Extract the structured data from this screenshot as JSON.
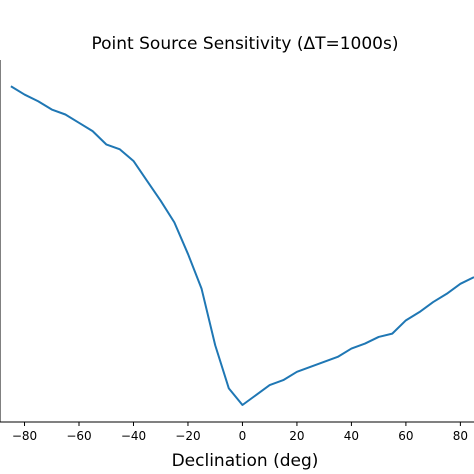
{
  "chart_data": {
    "type": "line",
    "title": "Point Source Sensitivity (ΔT=1000s)",
    "xlabel": "Declination (deg)",
    "ylabel": "",
    "xlim": [
      -89,
      85
    ],
    "ylim": [
      0,
      100
    ],
    "xticks": [
      -80,
      -60,
      -40,
      -20,
      0,
      20,
      40,
      60,
      80
    ],
    "xtick_labels": [
      "−80",
      "−60",
      "−40",
      "−20",
      "0",
      "20",
      "40",
      "60",
      "80"
    ],
    "grid": false,
    "series": [
      {
        "color": "#1f77b4",
        "x": [
          -85,
          -80,
          -75,
          -70,
          -65,
          -60,
          -55,
          -50,
          -45,
          -40,
          -35,
          -30,
          -25,
          -20,
          -15,
          -10,
          -5,
          0,
          5,
          10,
          15,
          20,
          25,
          30,
          35,
          40,
          45,
          50,
          55,
          60,
          65,
          70,
          75,
          80,
          85
        ],
        "y": [
          96,
          93.5,
          91.5,
          89,
          87.5,
          85,
          82.5,
          78.5,
          77,
          73.5,
          67.5,
          61.5,
          55,
          45.5,
          35,
          18,
          5,
          0,
          3,
          6,
          7.5,
          10,
          11.5,
          13,
          14.5,
          17,
          18.5,
          20.5,
          21.5,
          25.5,
          28,
          31,
          33.5,
          36.5,
          38.5
        ]
      }
    ]
  }
}
